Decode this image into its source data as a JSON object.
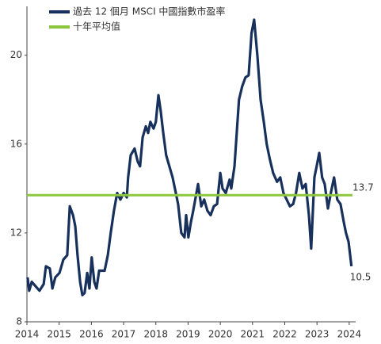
{
  "chart_data": {
    "type": "line",
    "series": [
      {
        "name": "過去 12 個月 MSCI 中國指數市盈率",
        "color": "#17305c",
        "x": [
          2014.02,
          2014.07,
          2014.15,
          2014.27,
          2014.39,
          2014.52,
          2014.59,
          2014.71,
          2014.79,
          2014.88,
          2015.01,
          2015.13,
          2015.25,
          2015.33,
          2015.43,
          2015.5,
          2015.57,
          2015.65,
          2015.72,
          2015.79,
          2015.87,
          2015.94,
          2016.01,
          2016.09,
          2016.16,
          2016.24,
          2016.41,
          2016.51,
          2016.6,
          2016.7,
          2016.8,
          2016.9,
          2017.0,
          2017.1,
          2017.14,
          2017.22,
          2017.34,
          2017.44,
          2017.51,
          2017.59,
          2017.69,
          2017.76,
          2017.83,
          2017.93,
          2018.0,
          2018.08,
          2018.15,
          2018.23,
          2018.32,
          2018.42,
          2018.52,
          2018.62,
          2018.69,
          2018.79,
          2018.89,
          2018.94,
          2019.01,
          2019.09,
          2019.16,
          2019.31,
          2019.41,
          2019.5,
          2019.6,
          2019.7,
          2019.8,
          2019.9,
          2020.0,
          2020.07,
          2020.17,
          2020.29,
          2020.34,
          2020.44,
          2020.51,
          2020.58,
          2020.68,
          2020.78,
          2020.88,
          2020.97,
          2021.05,
          2021.15,
          2021.25,
          2021.35,
          2021.44,
          2021.54,
          2021.64,
          2021.76,
          2021.86,
          2021.96,
          2022.06,
          2022.16,
          2022.26,
          2022.35,
          2022.45,
          2022.55,
          2022.65,
          2022.75,
          2022.82,
          2022.92,
          2022.99,
          2023.07,
          2023.16,
          2023.24,
          2023.34,
          2023.43,
          2023.53,
          2023.63,
          2023.73,
          2023.83,
          2023.9,
          2023.98,
          2024.07
        ],
        "values": [
          10.0,
          9.4,
          9.8,
          9.6,
          9.4,
          9.7,
          10.5,
          10.4,
          9.5,
          10.0,
          10.2,
          10.8,
          11.0,
          13.2,
          12.8,
          12.3,
          11.0,
          9.8,
          9.2,
          9.3,
          10.2,
          9.5,
          10.9,
          9.8,
          9.5,
          10.3,
          10.3,
          11.0,
          12.0,
          13.0,
          13.8,
          13.5,
          13.8,
          13.6,
          14.5,
          15.5,
          15.8,
          15.2,
          15.0,
          16.3,
          16.8,
          16.5,
          17.0,
          16.7,
          17.0,
          18.2,
          17.5,
          16.5,
          15.5,
          15.0,
          14.5,
          13.8,
          13.3,
          12.0,
          11.8,
          12.8,
          11.8,
          12.5,
          13.0,
          14.2,
          13.2,
          13.5,
          13.0,
          12.8,
          13.2,
          13.3,
          14.7,
          14.0,
          13.8,
          14.4,
          14.0,
          15.0,
          16.5,
          18.0,
          18.6,
          19.0,
          19.1,
          21.0,
          21.6,
          20.0,
          18.0,
          17.0,
          16.0,
          15.3,
          14.7,
          14.3,
          14.5,
          13.8,
          13.5,
          13.2,
          13.3,
          13.8,
          14.7,
          14.0,
          14.2,
          12.8,
          11.3,
          14.5,
          15.0,
          15.6,
          14.5,
          14.2,
          13.1,
          13.8,
          14.5,
          13.5,
          13.3,
          12.5,
          12.0,
          11.6,
          10.5
        ]
      },
      {
        "name": "十年平均值",
        "color": "#8dc63f",
        "value": 13.7
      }
    ],
    "xlim": [
      2014,
      2024.2
    ],
    "xticks": [
      2014,
      2015,
      2016,
      2017,
      2018,
      2019,
      2020,
      2021,
      2022,
      2023,
      2024
    ],
    "ylim": [
      8,
      22.2
    ],
    "yticks": [
      8,
      12,
      16,
      20
    ],
    "grid": false,
    "legend": "top-left"
  }
}
